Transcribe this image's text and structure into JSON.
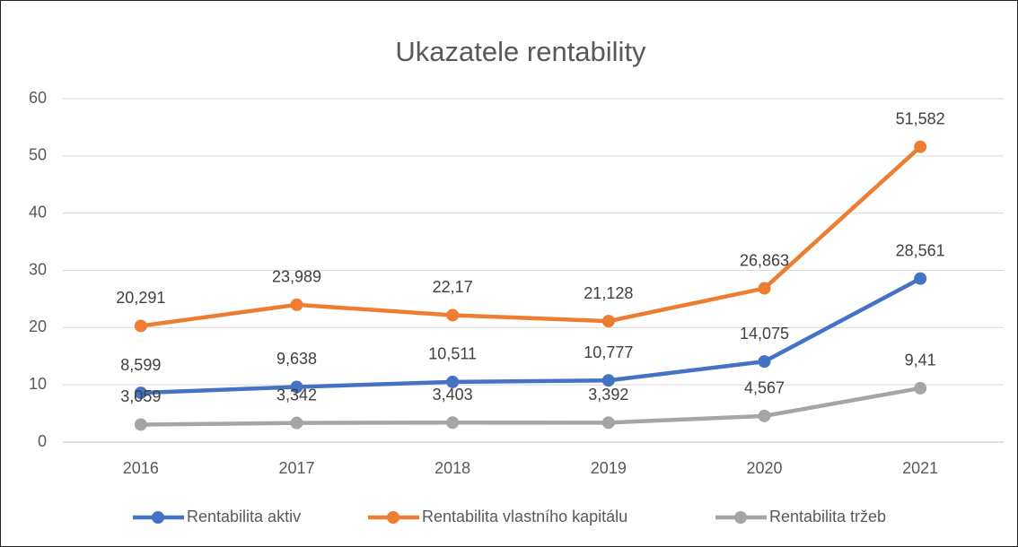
{
  "chart_data": {
    "type": "line",
    "title": "Ukazatele rentability",
    "categories": [
      "2016",
      "2017",
      "2018",
      "2019",
      "2020",
      "2021"
    ],
    "ylim": [
      0,
      60
    ],
    "yticks": [
      0,
      10,
      20,
      30,
      40,
      50,
      60
    ],
    "grid": true,
    "legend": "bottom",
    "series": [
      {
        "name": "Rentabilita aktiv",
        "color": "#4472c4",
        "values": [
          8.599,
          9.638,
          10.511,
          10.777,
          14.075,
          28.561
        ],
        "value_labels": [
          "8,599",
          "9,638",
          "10,511",
          "10,777",
          "14,075",
          "28,561"
        ]
      },
      {
        "name": "Rentabilita vlastního kapitálu",
        "color": "#ed7d31",
        "values": [
          20.291,
          23.989,
          22.17,
          21.128,
          26.863,
          51.582
        ],
        "value_labels": [
          "20,291",
          "23,989",
          "22,17",
          "21,128",
          "26,863",
          "51,582"
        ]
      },
      {
        "name": "Rentabilita tržeb",
        "color": "#a5a5a5",
        "values": [
          3.059,
          3.342,
          3.403,
          3.392,
          4.567,
          9.41
        ],
        "value_labels": [
          "3,059",
          "3,342",
          "3,403",
          "3,392",
          "4,567",
          "9,41"
        ]
      }
    ]
  }
}
